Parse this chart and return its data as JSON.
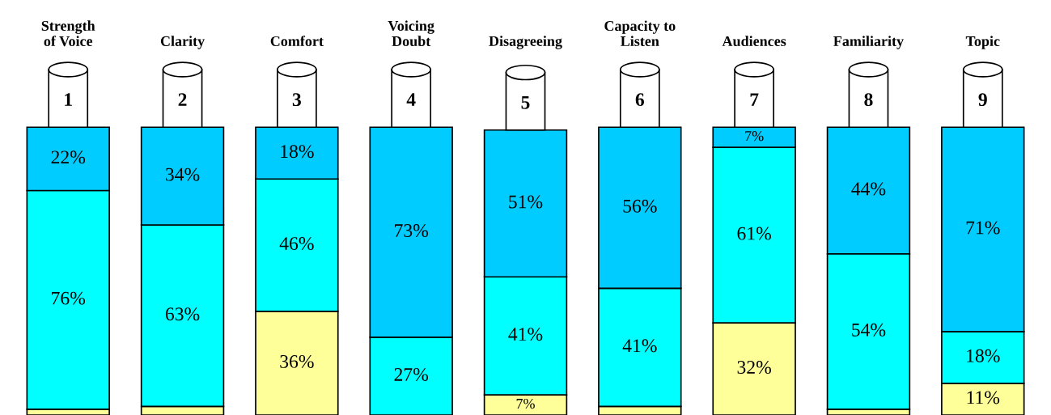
{
  "chart_data": {
    "type": "bar",
    "stacked": true,
    "categories": [
      "Strength\nof Voice",
      "Clarity",
      "Comfort",
      "Voicing\nDoubt",
      "Disagreeing",
      "Capacity to\nListen",
      "Audiences",
      "Familiarity",
      "Topic"
    ],
    "annotations": [
      "1",
      "2",
      "3",
      "4",
      "5",
      "6",
      "7",
      "8",
      "9"
    ],
    "series": [
      {
        "color": "#ffff99",
        "values": [
          2,
          3,
          36,
          0,
          7,
          3,
          32,
          2,
          11
        ],
        "value_labels": [
          null,
          null,
          "36%",
          null,
          "7%",
          null,
          "32%",
          null,
          "11%"
        ]
      },
      {
        "color": "#00ffff",
        "values": [
          76,
          63,
          46,
          27,
          41,
          41,
          61,
          54,
          18
        ],
        "value_labels": [
          "76%",
          "63%",
          "46%",
          "27%",
          "41%",
          "41%",
          "61%",
          "54%",
          "18%"
        ]
      },
      {
        "color": "#00ccff",
        "values": [
          22,
          34,
          18,
          73,
          51,
          56,
          7,
          44,
          71
        ],
        "value_labels": [
          "22%",
          "34%",
          "18%",
          "73%",
          "51%",
          "56%",
          "7%",
          "44%",
          "71%"
        ]
      }
    ]
  }
}
